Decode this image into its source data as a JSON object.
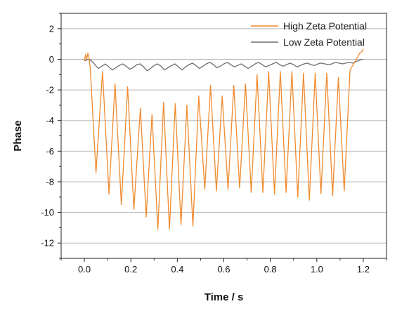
{
  "chart_data": {
    "type": "line",
    "xlabel": "Time / s",
    "ylabel": "Phase",
    "xlim": [
      -0.1,
      1.3
    ],
    "ylim": [
      -13,
      3
    ],
    "x_ticks": [
      "0.0",
      "0.2",
      "0.4",
      "0.6",
      "0.8",
      "1.0",
      "1.2"
    ],
    "y_ticks": [
      "2",
      "0",
      "-2",
      "-4",
      "-6",
      "-8",
      "-10",
      "-12"
    ],
    "grid": true,
    "legend_position": "top-right",
    "series": [
      {
        "name": "High Zeta Potential",
        "color": "#f08a2e",
        "x": [
          0.0,
          0.005,
          0.01,
          0.015,
          0.02,
          0.025,
          0.05,
          0.078,
          0.106,
          0.132,
          0.159,
          0.186,
          0.213,
          0.241,
          0.266,
          0.291,
          0.316,
          0.341,
          0.366,
          0.391,
          0.416,
          0.441,
          0.467,
          0.492,
          0.518,
          0.543,
          0.568,
          0.593,
          0.618,
          0.643,
          0.668,
          0.693,
          0.718,
          0.743,
          0.768,
          0.793,
          0.818,
          0.843,
          0.868,
          0.893,
          0.918,
          0.943,
          0.968,
          0.993,
          1.018,
          1.043,
          1.068,
          1.093,
          1.118,
          1.143,
          1.17,
          1.185,
          1.195,
          1.2
        ],
        "values": [
          -0.1,
          0.3,
          0.0,
          0.4,
          0.1,
          -0.5,
          -7.4,
          -0.8,
          -8.8,
          -1.6,
          -9.5,
          -1.8,
          -9.8,
          -3.2,
          -10.3,
          -3.6,
          -11.1,
          -2.8,
          -11.1,
          -2.9,
          -10.8,
          -3.0,
          -10.9,
          -2.4,
          -8.5,
          -1.7,
          -8.6,
          -2.4,
          -8.5,
          -1.7,
          -8.4,
          -1.6,
          -8.7,
          -1.0,
          -8.7,
          -0.8,
          -8.8,
          -0.8,
          -8.7,
          -0.8,
          -9.0,
          -0.9,
          -9.2,
          -0.9,
          -8.8,
          -0.9,
          -8.9,
          -1.2,
          -8.6,
          -0.7,
          0.0,
          0.4,
          0.5,
          0.7
        ]
      },
      {
        "name": "Low Zeta Potential",
        "color": "#6b6b6b",
        "x": [
          0.0,
          0.01,
          0.02,
          0.03,
          0.045,
          0.06,
          0.075,
          0.09,
          0.105,
          0.12,
          0.135,
          0.15,
          0.165,
          0.18,
          0.195,
          0.21,
          0.225,
          0.24,
          0.255,
          0.27,
          0.285,
          0.3,
          0.315,
          0.33,
          0.345,
          0.36,
          0.375,
          0.39,
          0.405,
          0.42,
          0.435,
          0.45,
          0.465,
          0.48,
          0.495,
          0.51,
          0.525,
          0.54,
          0.555,
          0.57,
          0.585,
          0.6,
          0.615,
          0.63,
          0.645,
          0.66,
          0.675,
          0.69,
          0.705,
          0.72,
          0.735,
          0.75,
          0.765,
          0.78,
          0.795,
          0.81,
          0.825,
          0.84,
          0.855,
          0.87,
          0.885,
          0.9,
          0.915,
          0.93,
          0.945,
          0.96,
          0.975,
          0.99,
          1.005,
          1.02,
          1.035,
          1.05,
          1.065,
          1.08,
          1.095,
          1.11,
          1.125,
          1.14,
          1.155,
          1.17,
          1.185,
          1.2
        ],
        "values": [
          -0.1,
          -0.05,
          0.0,
          -0.1,
          -0.35,
          -0.6,
          -0.45,
          -0.3,
          -0.5,
          -0.7,
          -0.55,
          -0.4,
          -0.3,
          -0.45,
          -0.65,
          -0.55,
          -0.35,
          -0.3,
          -0.5,
          -0.75,
          -0.6,
          -0.4,
          -0.3,
          -0.45,
          -0.7,
          -0.55,
          -0.4,
          -0.3,
          -0.5,
          -0.7,
          -0.5,
          -0.35,
          -0.25,
          -0.4,
          -0.6,
          -0.45,
          -0.3,
          -0.2,
          -0.35,
          -0.55,
          -0.45,
          -0.3,
          -0.2,
          -0.35,
          -0.5,
          -0.4,
          -0.3,
          -0.45,
          -0.6,
          -0.45,
          -0.3,
          -0.2,
          -0.35,
          -0.5,
          -0.4,
          -0.3,
          -0.2,
          -0.35,
          -0.45,
          -0.35,
          -0.25,
          -0.35,
          -0.5,
          -0.4,
          -0.3,
          -0.25,
          -0.35,
          -0.4,
          -0.3,
          -0.25,
          -0.3,
          -0.35,
          -0.3,
          -0.2,
          -0.25,
          -0.3,
          -0.25,
          -0.2,
          -0.25,
          -0.15,
          -0.05,
          0.0
        ]
      }
    ]
  }
}
